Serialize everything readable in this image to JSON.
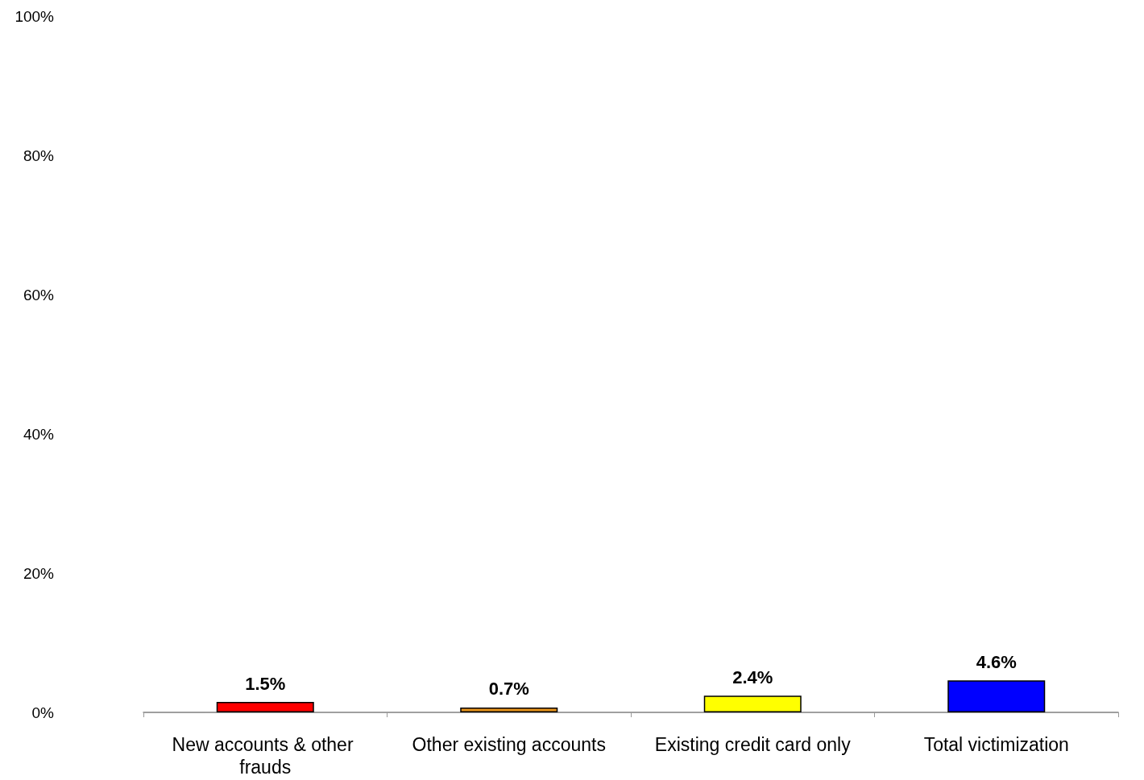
{
  "chart_data": {
    "type": "bar",
    "categories": [
      "New accounts & other frauds",
      "Other existing accounts",
      "Existing credit card only",
      "Total victimization"
    ],
    "values": [
      1.5,
      0.7,
      2.4,
      4.6
    ],
    "colors": [
      "#ff0000",
      "#e8951c",
      "#ffff00",
      "#0000ff"
    ],
    "value_labels": [
      "1.5%",
      "0.7%",
      "2.4%",
      "4.6%"
    ],
    "ylim": [
      0,
      100
    ],
    "yticks": [
      {
        "value": 0,
        "label": "0%"
      },
      {
        "value": 20,
        "label": "20%"
      },
      {
        "value": 40,
        "label": "40%"
      },
      {
        "value": 60,
        "label": "60%"
      },
      {
        "value": 80,
        "label": "80%"
      },
      {
        "value": 100,
        "label": "100%"
      }
    ],
    "grid": false
  }
}
